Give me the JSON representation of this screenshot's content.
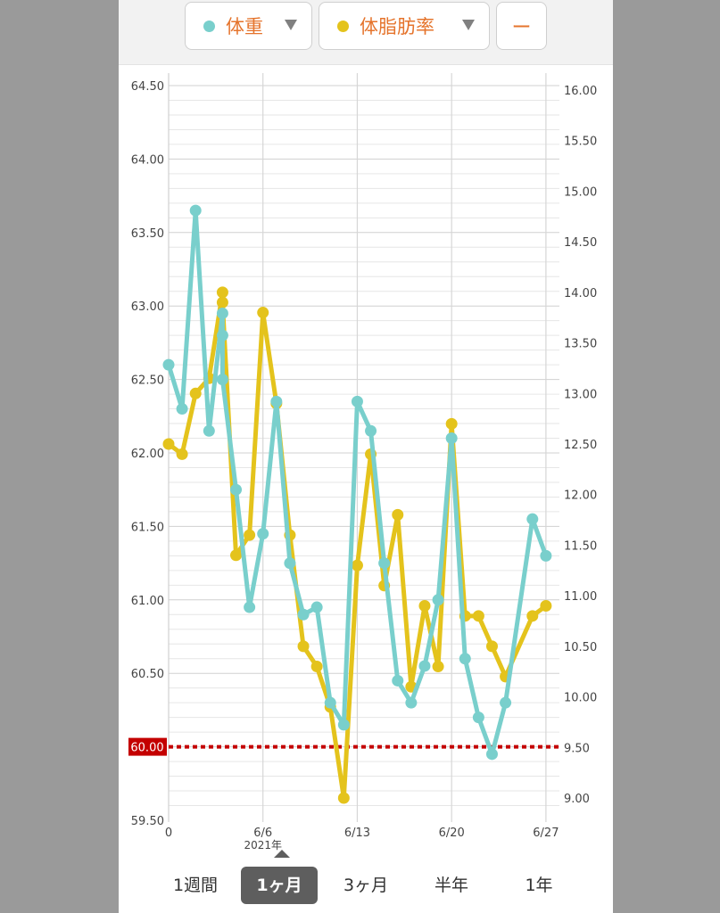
{
  "colors": {
    "weight": "#79cfcc",
    "fat": "#e4c31c",
    "target": "#c40000",
    "selector_text": "#e5742c"
  },
  "selectors": {
    "weight_label": "体重",
    "fat_label": "体脂肪率",
    "none_label": "ー"
  },
  "range_tabs": {
    "week": "1週間",
    "month": "1ヶ月",
    "three_months": "3ヶ月",
    "half_year": "半年",
    "year": "1年",
    "active": "month"
  },
  "chart_data": {
    "type": "line",
    "x_tick_labels": [
      "0",
      "6/6",
      "6/13",
      "6/20",
      "6/27"
    ],
    "x_year_label": "2021年",
    "x_tick_days": [
      30,
      37,
      44,
      51,
      58
    ],
    "x_range_days": [
      30,
      59
    ],
    "left_axis": {
      "ylim": [
        59.5,
        64.5
      ],
      "tick_labels": [
        "59.50",
        "60.50",
        "61.00",
        "61.50",
        "62.00",
        "62.50",
        "63.00",
        "63.50",
        "64.00",
        "64.50"
      ]
    },
    "right_axis": {
      "ylim": [
        8.8,
        16.1
      ],
      "tick_labels": [
        "9.00",
        "9.50",
        "10.00",
        "10.50",
        "11.00",
        "11.50",
        "12.00",
        "12.50",
        "13.00",
        "13.50",
        "14.00",
        "14.50",
        "15.00",
        "15.50",
        "16.00"
      ]
    },
    "target": {
      "value": 60.0,
      "label": "60.00"
    },
    "series": [
      {
        "name": "体重",
        "axis": "left",
        "points": [
          [
            30,
            62.6
          ],
          [
            31,
            62.3
          ],
          [
            32,
            63.65
          ],
          [
            33,
            62.15
          ],
          [
            34,
            62.95
          ],
          [
            34,
            62.8
          ],
          [
            34,
            62.5
          ],
          [
            35,
            61.75
          ],
          [
            36,
            60.95
          ],
          [
            37,
            61.45
          ],
          [
            38,
            62.35
          ],
          [
            39,
            61.25
          ],
          [
            40,
            60.9
          ],
          [
            41,
            60.95
          ],
          [
            42,
            60.3
          ],
          [
            43,
            60.15
          ],
          [
            44,
            62.35
          ],
          [
            45,
            62.15
          ],
          [
            46,
            61.25
          ],
          [
            47,
            60.45
          ],
          [
            48,
            60.3
          ],
          [
            49,
            60.55
          ],
          [
            50,
            61.0
          ],
          [
            51,
            62.1
          ],
          [
            52,
            60.6
          ],
          [
            53,
            60.2
          ],
          [
            54,
            59.95
          ],
          [
            55,
            60.3
          ],
          [
            57,
            61.55
          ],
          [
            58,
            61.3
          ]
        ]
      },
      {
        "name": "体脂肪率",
        "axis": "right",
        "points": [
          [
            30,
            12.5
          ],
          [
            31,
            12.4
          ],
          [
            32,
            13.0
          ],
          [
            33,
            13.15
          ],
          [
            34,
            14.0
          ],
          [
            34,
            13.9
          ],
          [
            35,
            11.4
          ],
          [
            36,
            11.6
          ],
          [
            37,
            13.8
          ],
          [
            38,
            12.9
          ],
          [
            39,
            11.6
          ],
          [
            40,
            10.5
          ],
          [
            41,
            10.3
          ],
          [
            42,
            9.9
          ],
          [
            43,
            9.0
          ],
          [
            44,
            11.3
          ],
          [
            45,
            12.4
          ],
          [
            46,
            11.1
          ],
          [
            47,
            11.8
          ],
          [
            48,
            10.1
          ],
          [
            49,
            10.9
          ],
          [
            50,
            10.3
          ],
          [
            51,
            12.7
          ],
          [
            52,
            10.8
          ],
          [
            53,
            10.8
          ],
          [
            54,
            10.5
          ],
          [
            55,
            10.2
          ],
          [
            57,
            10.8
          ],
          [
            58,
            10.9
          ]
        ]
      }
    ]
  }
}
